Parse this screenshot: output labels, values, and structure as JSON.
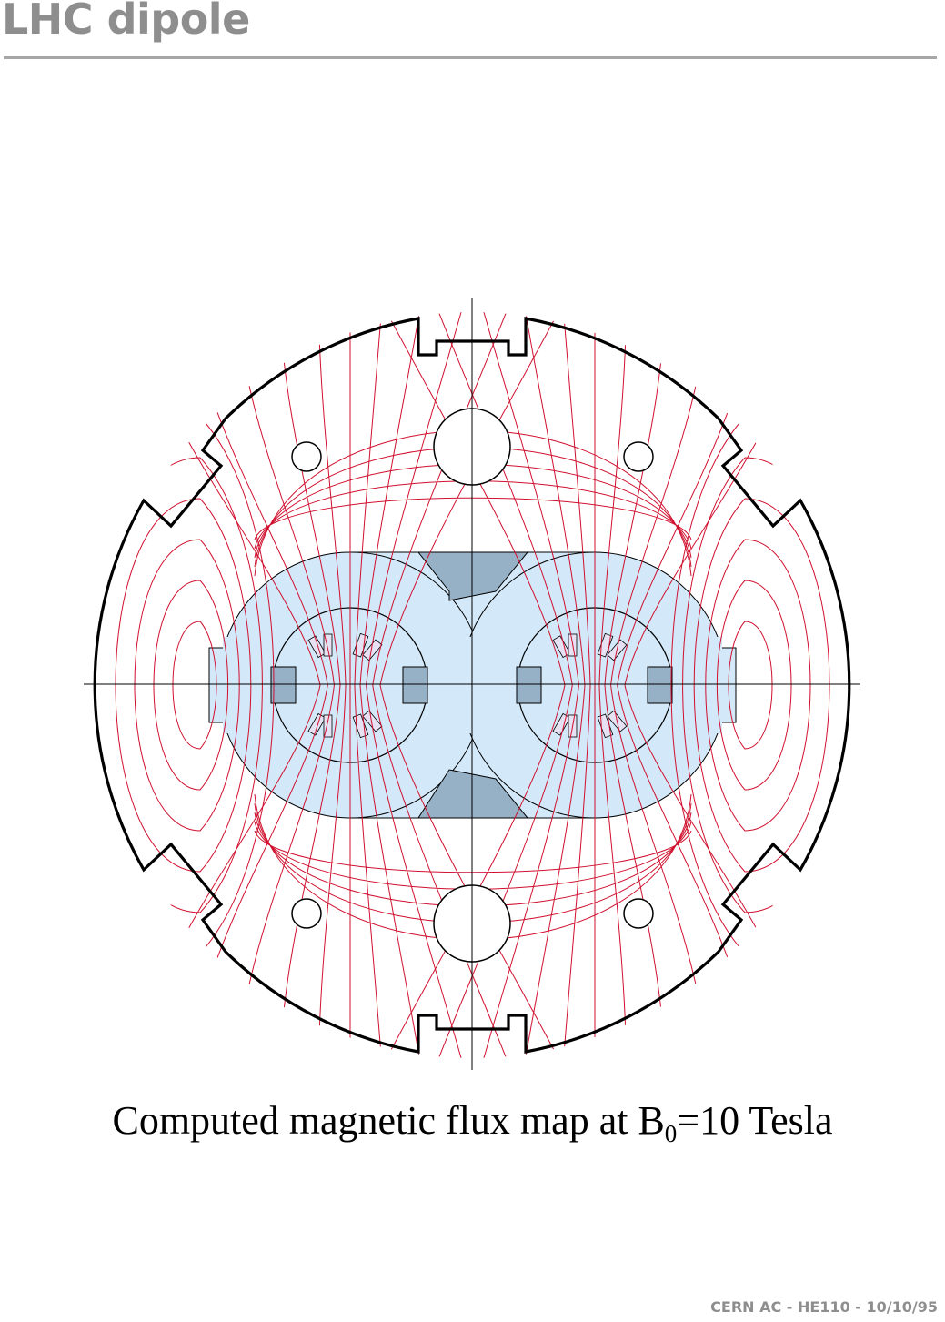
{
  "header": {
    "title": "LHC dipole"
  },
  "diagram": {
    "flux_line_color": "#d0102e",
    "yoke_outline_color": "#000000",
    "collar_fill_color": "#d3e8f8",
    "insert_fill_color": "#96b0c6"
  },
  "caption": {
    "text_before": "Computed magnetic flux map at B",
    "subscript": "0",
    "text_after": "=10 Tesla"
  },
  "footer": {
    "reference": "CERN AC - HE110 - 10/10/95"
  }
}
